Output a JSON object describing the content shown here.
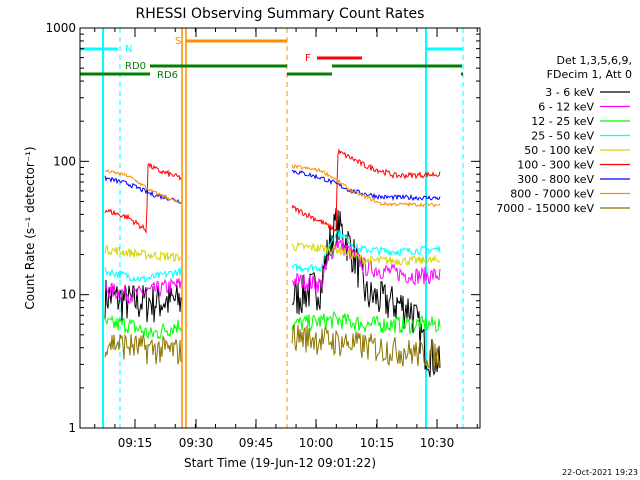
{
  "chart_data": {
    "type": "line",
    "title": "RHESSI Observing Summary Count Rates",
    "xlabel": "Start Time (19-Jun-12 09:01:22)",
    "ylabel": "Count Rate (s⁻¹ detector⁻¹)",
    "y_scale": "log",
    "ylim": [
      1,
      1000
    ],
    "y_ticks": [
      {
        "value": 1,
        "label": "1"
      },
      {
        "value": 10,
        "label": "10"
      },
      {
        "value": 100,
        "label": "100"
      },
      {
        "value": 1000,
        "label": "1000"
      }
    ],
    "xlim_minutes": [
      9.0,
      9.64
    ],
    "x_ticks": [
      {
        "label": "09:15",
        "value": 9.25
      },
      {
        "label": "09:30",
        "value": 9.5
      },
      {
        "label": "09:45",
        "value": 9.75
      },
      {
        "label": "10:00",
        "value": 10.0
      },
      {
        "label": "10:15",
        "value": 10.25
      },
      {
        "label": "10:30",
        "value": 10.5
      }
    ],
    "legend_position": "right",
    "legend_header": [
      "Det 1,3,5,6,9,",
      "FDecim 1, Att 0"
    ],
    "series": [
      {
        "name": "3 - 6 keV",
        "color": "#000000"
      },
      {
        "name": "6 - 12 keV",
        "color": "#ff00ff"
      },
      {
        "name": "12 - 25 keV",
        "color": "#00ff00"
      },
      {
        "name": "25 - 50 keV",
        "color": "#00ffff"
      },
      {
        "name": "50 - 100 keV",
        "color": "#d4d400"
      },
      {
        "name": "100 - 300 keV",
        "color": "#ff0000"
      },
      {
        "name": "300 - 800 keV",
        "color": "#0000ff"
      },
      {
        "name": "800 - 7000 keV",
        "color": "#ff8c00"
      },
      {
        "name": "7000 - 15000 keV",
        "color": "#8b7500"
      }
    ],
    "segments": [
      {
        "start": "09:09",
        "end": "09:28"
      },
      {
        "start": "09:57",
        "end": "10:34"
      }
    ],
    "flag_bars": [
      {
        "label": "N",
        "color": "#00ffff"
      },
      {
        "label": "S",
        "color": "#ff8c00"
      },
      {
        "label": "F",
        "color": "#ff0000"
      },
      {
        "label": "RD0",
        "color": "#008000"
      },
      {
        "label": "RD6",
        "color": "#008000"
      }
    ],
    "timestamp": "22-Oct-2021 19:23"
  }
}
